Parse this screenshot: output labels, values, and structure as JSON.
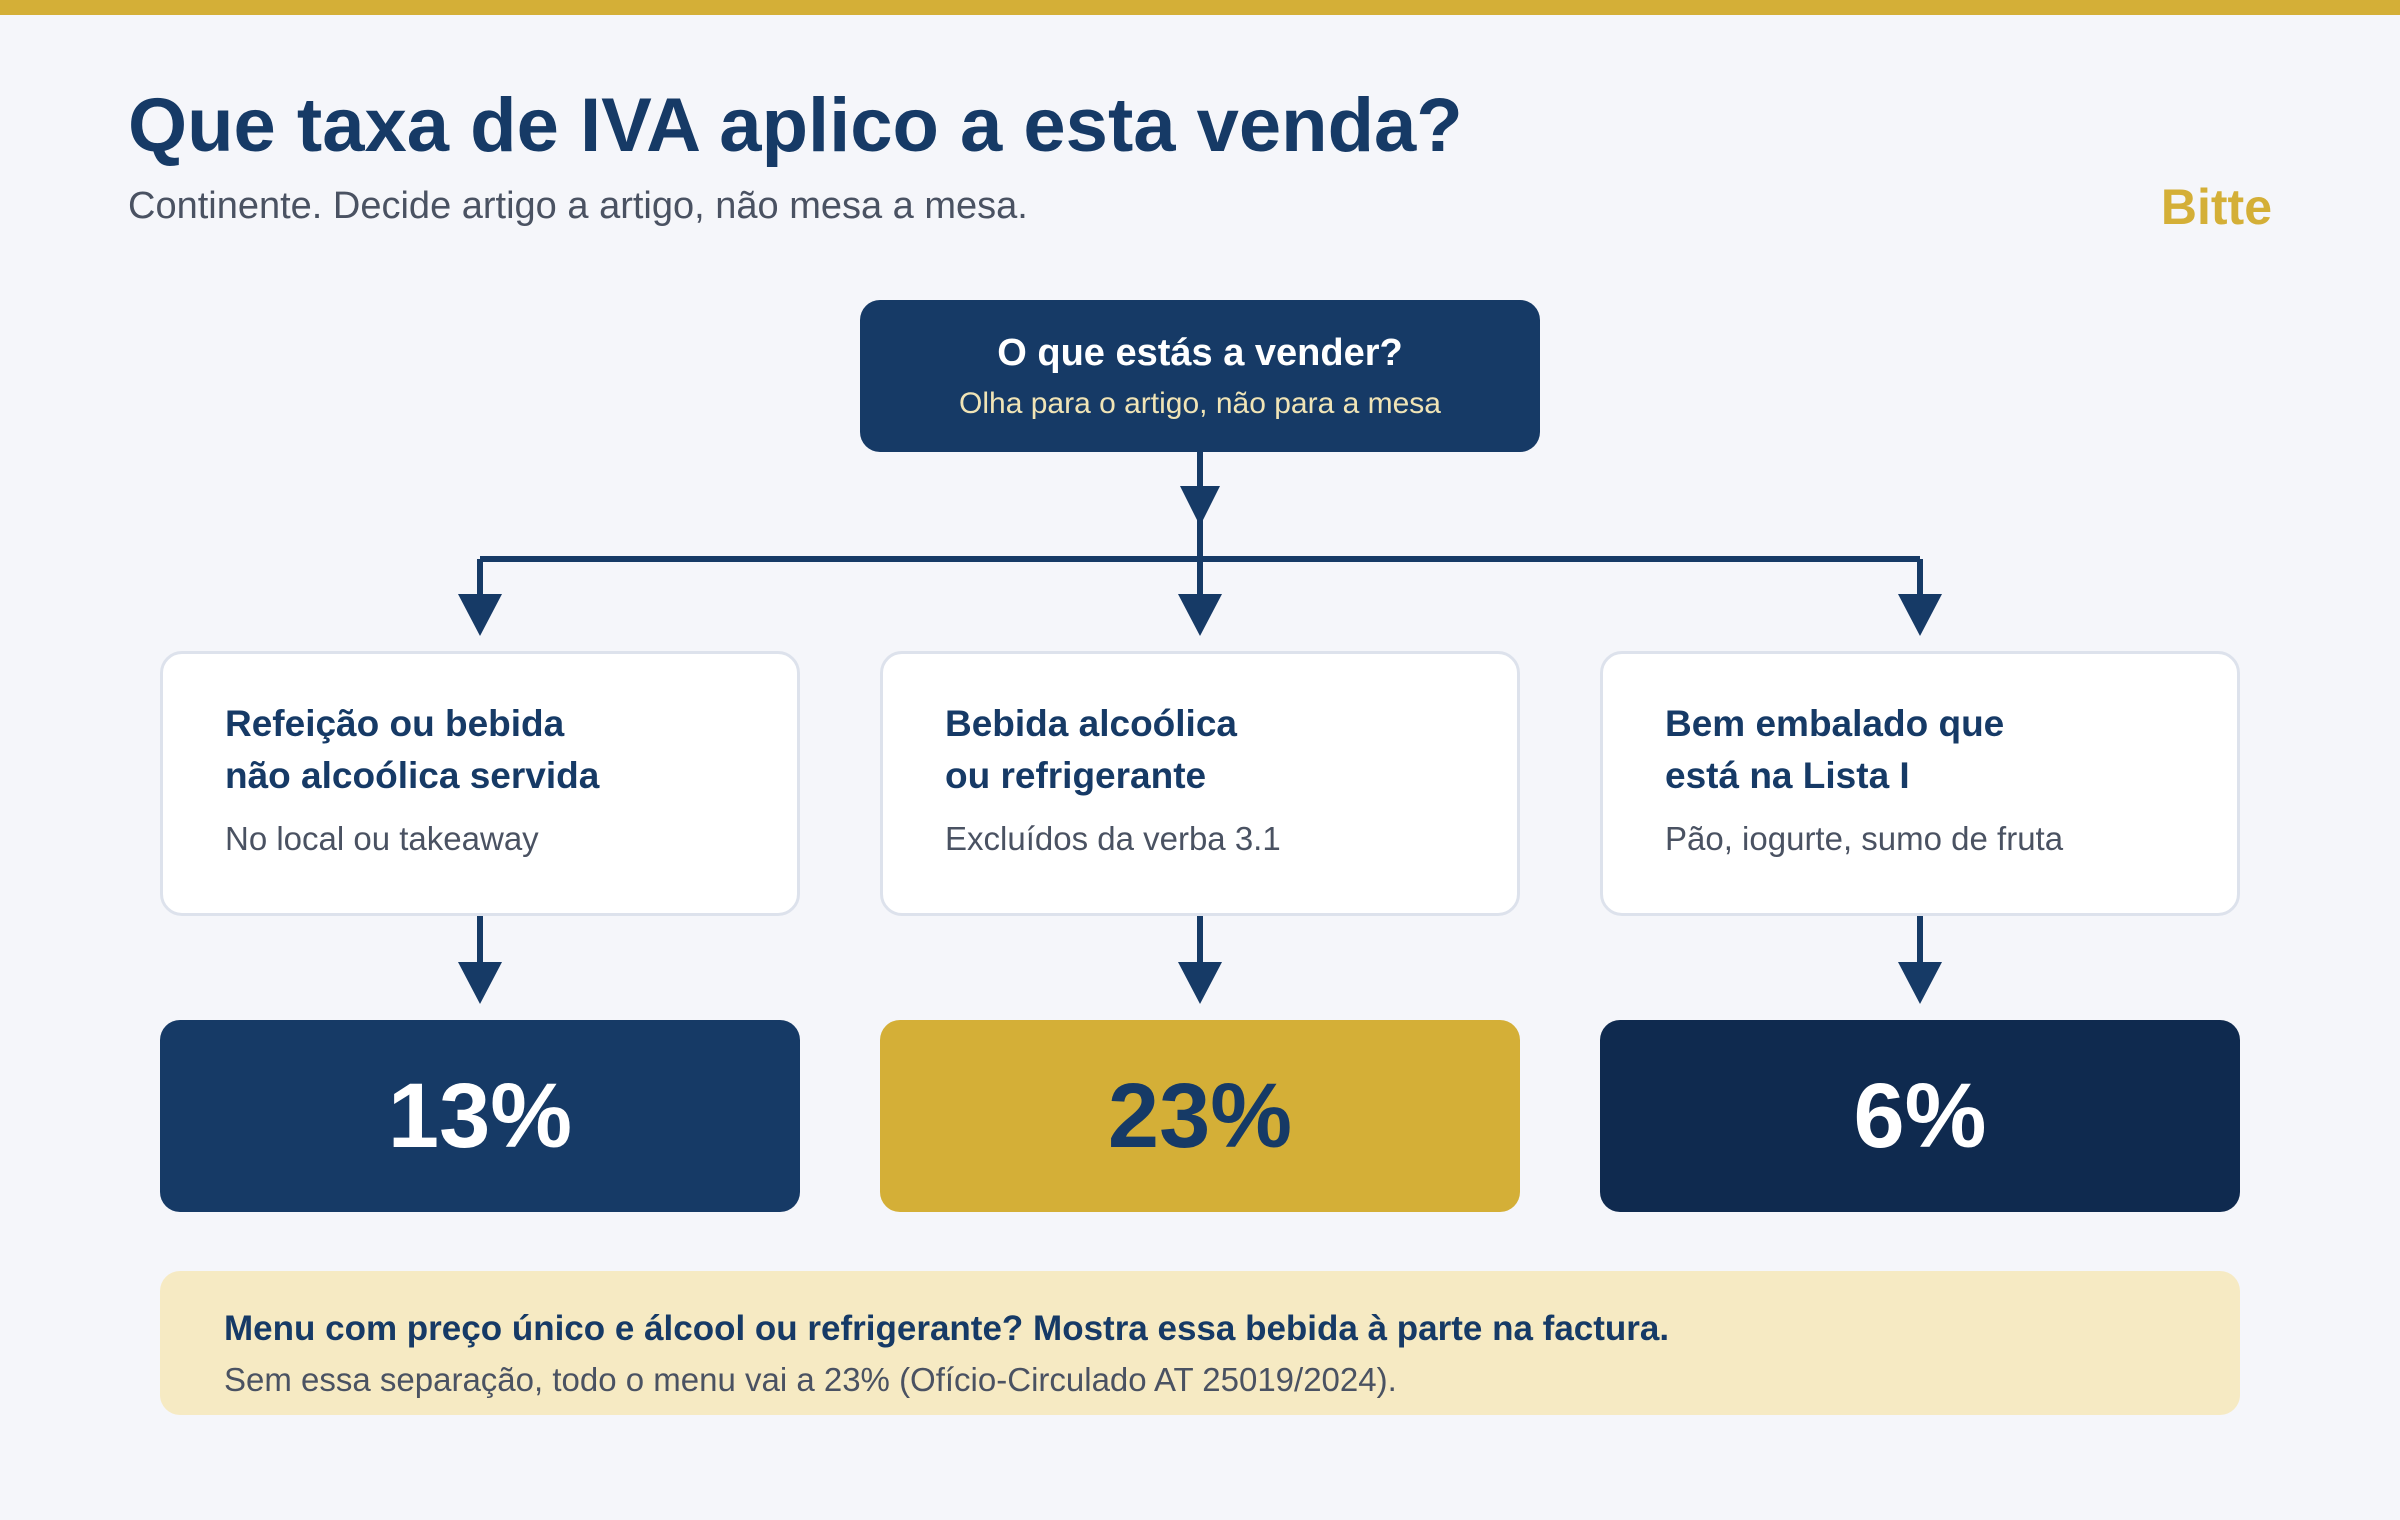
{
  "header": {
    "title": "Que taxa de IVA aplico a esta venda?",
    "subtitle": "Continente. Decide artigo a artigo, não mesa a mesa.",
    "brand": "Bitte"
  },
  "root": {
    "question": "O que estás a vender?",
    "hint": "Olha para o artigo, não para a mesa"
  },
  "branches": [
    {
      "title": "Refeição ou bebida\nnão alcoólica servida",
      "desc": "No local ou takeaway",
      "rate": "13%"
    },
    {
      "title": "Bebida alcoólica\nou refrigerante",
      "desc": "Excluídos da verba 3.1",
      "rate": "23%"
    },
    {
      "title": "Bem embalado que\nestá na Lista I",
      "desc": "Pão, iogurte, sumo de fruta",
      "rate": "6%"
    }
  ],
  "note": {
    "title": "Menu com preço único e álcool ou refrigerante? Mostra essa bebida à parte na factura.",
    "desc": "Sem essa separação, todo o menu vai a 23% (Ofício-Circulado AT 25019/2024)."
  },
  "colors": {
    "navy": "#163a66",
    "gold": "#d4af37",
    "dark_navy": "#0f2a4f",
    "note_bg": "#f6eac3"
  }
}
